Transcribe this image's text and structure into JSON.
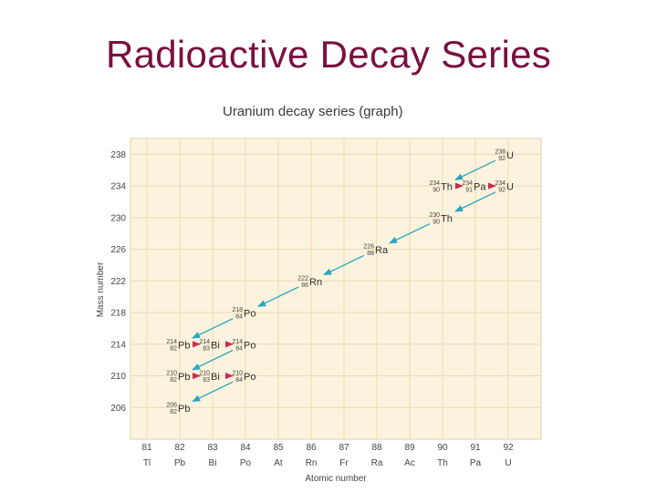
{
  "slide": {
    "title": "Radioactive Decay Series"
  },
  "chart_data": {
    "type": "diagram",
    "title": "Uranium decay series (graph)",
    "xlabel": "Atomic number",
    "ylabel": "Mass number",
    "x_ticks": [
      81,
      82,
      83,
      84,
      85,
      86,
      87,
      88,
      89,
      90,
      91,
      92
    ],
    "element_labels": [
      "Tl",
      "Pb",
      "Bi",
      "Po",
      "At",
      "Rn",
      "Fr",
      "Ra",
      "Ac",
      "Th",
      "Pa",
      "U"
    ],
    "y_ticks": [
      238,
      234,
      230,
      226,
      222,
      218,
      214,
      210,
      206
    ],
    "xlim": [
      80.5,
      93
    ],
    "ylim": [
      202,
      240
    ],
    "colors": {
      "alpha": "#2aa6c2",
      "beta": "#cc2a55",
      "grid": "#ecd9b2",
      "bg": "#fbf3de",
      "text": "#444444"
    },
    "nuclides": [
      {
        "symbol": "U",
        "mass": "238",
        "z_label": "92",
        "z": 92,
        "a": 238
      },
      {
        "symbol": "Th",
        "mass": "234",
        "z_label": "90",
        "z": 90,
        "a": 234
      },
      {
        "symbol": "Pa",
        "mass": "234",
        "z_label": "91",
        "z": 91,
        "a": 234
      },
      {
        "symbol": "U",
        "mass": "234",
        "z_label": "92",
        "z": 92,
        "a": 234
      },
      {
        "symbol": "Th",
        "mass": "230",
        "z_label": "90",
        "z": 90,
        "a": 230
      },
      {
        "symbol": "Ra",
        "mass": "226",
        "z_label": "88",
        "z": 88,
        "a": 226
      },
      {
        "symbol": "Rn",
        "mass": "222",
        "z_label": "86",
        "z": 86,
        "a": 222
      },
      {
        "symbol": "Po",
        "mass": "218",
        "z_label": "84",
        "z": 84,
        "a": 218
      },
      {
        "symbol": "Pb",
        "mass": "214",
        "z_label": "82",
        "z": 82,
        "a": 214
      },
      {
        "symbol": "Bi",
        "mass": "214",
        "z_label": "83",
        "z": 83,
        "a": 214
      },
      {
        "symbol": "Po",
        "mass": "214",
        "z_label": "84",
        "z": 84,
        "a": 214
      },
      {
        "symbol": "Pb",
        "mass": "210",
        "z_label": "82",
        "z": 82,
        "a": 210
      },
      {
        "symbol": "Bi",
        "mass": "210",
        "z_label": "83",
        "z": 83,
        "a": 210
      },
      {
        "symbol": "Po",
        "mass": "210",
        "z_label": "84",
        "z": 84,
        "a": 210
      },
      {
        "symbol": "Pb",
        "mass": "206",
        "z_label": "82",
        "z": 82,
        "a": 206
      }
    ],
    "decays": [
      {
        "type": "alpha",
        "from": [
          92,
          238
        ],
        "to": [
          90,
          234
        ]
      },
      {
        "type": "beta",
        "from": [
          90,
          234
        ],
        "to": [
          91,
          234
        ]
      },
      {
        "type": "beta",
        "from": [
          91,
          234
        ],
        "to": [
          92,
          234
        ]
      },
      {
        "type": "alpha",
        "from": [
          92,
          234
        ],
        "to": [
          90,
          230
        ]
      },
      {
        "type": "alpha",
        "from": [
          90,
          230
        ],
        "to": [
          88,
          226
        ]
      },
      {
        "type": "alpha",
        "from": [
          88,
          226
        ],
        "to": [
          86,
          222
        ]
      },
      {
        "type": "alpha",
        "from": [
          86,
          222
        ],
        "to": [
          84,
          218
        ]
      },
      {
        "type": "alpha",
        "from": [
          84,
          218
        ],
        "to": [
          82,
          214
        ]
      },
      {
        "type": "beta",
        "from": [
          82,
          214
        ],
        "to": [
          83,
          214
        ]
      },
      {
        "type": "beta",
        "from": [
          83,
          214
        ],
        "to": [
          84,
          214
        ]
      },
      {
        "type": "alpha",
        "from": [
          84,
          214
        ],
        "to": [
          82,
          210
        ]
      },
      {
        "type": "beta",
        "from": [
          82,
          210
        ],
        "to": [
          83,
          210
        ]
      },
      {
        "type": "beta",
        "from": [
          83,
          210
        ],
        "to": [
          84,
          210
        ]
      },
      {
        "type": "alpha",
        "from": [
          84,
          210
        ],
        "to": [
          82,
          206
        ]
      }
    ]
  }
}
